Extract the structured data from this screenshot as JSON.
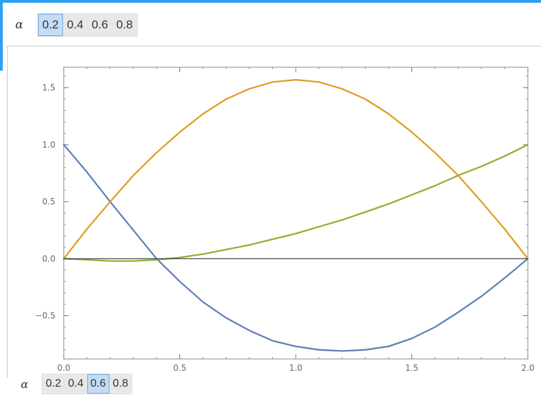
{
  "controls": {
    "variable": "α",
    "options": [
      "0.2",
      "0.4",
      "0.6",
      "0.8"
    ],
    "top_selected_index": 0,
    "bottom_selected_index": 2
  },
  "chart_data": {
    "type": "line",
    "title": "",
    "xlabel": "",
    "ylabel": "",
    "xlim": [
      0,
      2
    ],
    "ylim": [
      -0.88,
      1.68
    ],
    "x_ticks": [
      "0.0",
      "0.5",
      "1.0",
      "1.5",
      "2.0"
    ],
    "x_tick_values": [
      0,
      0.5,
      1,
      1.5,
      2
    ],
    "y_ticks": [
      "-0.5",
      "0.0",
      "0.5",
      "1.0",
      "1.5"
    ],
    "y_tick_values": [
      -0.5,
      0,
      0.5,
      1,
      1.5
    ],
    "grid": false,
    "legend": "none",
    "series": [
      {
        "color": "#5e81b5",
        "x": [
          0,
          0.1,
          0.2,
          0.3,
          0.4,
          0.5,
          0.6,
          0.7,
          0.8,
          0.9,
          1.0,
          1.1,
          1.2,
          1.3,
          1.4,
          1.5,
          1.6,
          1.7,
          1.8,
          1.9,
          2.0
        ],
        "y": [
          1.0,
          0.76,
          0.5,
          0.25,
          0.0,
          -0.2,
          -0.38,
          -0.52,
          -0.63,
          -0.72,
          -0.77,
          -0.8,
          -0.81,
          -0.8,
          -0.77,
          -0.7,
          -0.6,
          -0.47,
          -0.33,
          -0.17,
          0.0
        ]
      },
      {
        "color": "#e19c24",
        "x": [
          0,
          0.1,
          0.2,
          0.3,
          0.4,
          0.5,
          0.6,
          0.7,
          0.8,
          0.9,
          1.0,
          1.1,
          1.2,
          1.3,
          1.4,
          1.5,
          1.6,
          1.7,
          1.8,
          1.9,
          2.0
        ],
        "y": [
          0.0,
          0.26,
          0.5,
          0.73,
          0.93,
          1.11,
          1.27,
          1.4,
          1.49,
          1.55,
          1.57,
          1.55,
          1.49,
          1.4,
          1.27,
          1.11,
          0.93,
          0.73,
          0.5,
          0.26,
          0.0
        ]
      },
      {
        "color": "#8fb032",
        "x": [
          0,
          0.1,
          0.2,
          0.3,
          0.4,
          0.5,
          0.6,
          0.7,
          0.8,
          0.9,
          1.0,
          1.1,
          1.2,
          1.3,
          1.4,
          1.5,
          1.6,
          1.7,
          1.8,
          1.9,
          2.0
        ],
        "y": [
          0.0,
          -0.01,
          -0.02,
          -0.02,
          -0.01,
          0.01,
          0.04,
          0.08,
          0.12,
          0.17,
          0.22,
          0.28,
          0.34,
          0.41,
          0.48,
          0.56,
          0.64,
          0.73,
          0.81,
          0.9,
          1.0
        ]
      },
      {
        "color": "#333333",
        "x": [
          0,
          2
        ],
        "y": [
          0,
          0
        ]
      }
    ]
  }
}
